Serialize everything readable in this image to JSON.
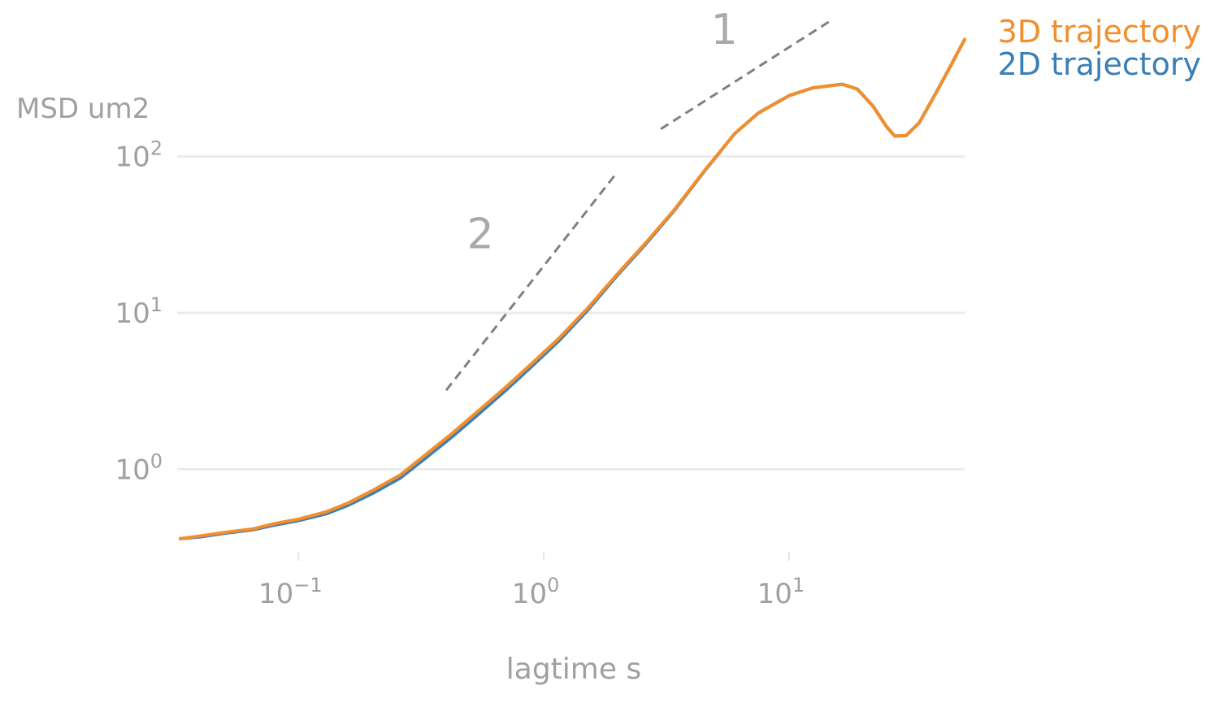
{
  "chart_data": {
    "type": "line",
    "title": "",
    "xlabel": "lagtime s",
    "ylabel": "MSD um2",
    "x_scale": "log",
    "y_scale": "log",
    "xlim": [
      0.032,
      52
    ],
    "ylim": [
      0.26,
      700
    ],
    "grid": "horizontal",
    "legend_position": "top-right",
    "x_ticks": [
      {
        "value": 0.1,
        "base": "10",
        "exp": "−1"
      },
      {
        "value": 1,
        "base": "10",
        "exp": "0"
      },
      {
        "value": 10,
        "base": "10",
        "exp": "1"
      }
    ],
    "y_ticks": [
      {
        "value": 1,
        "base": "10",
        "exp": "0"
      },
      {
        "value": 10,
        "base": "10",
        "exp": "1"
      },
      {
        "value": 100,
        "base": "10",
        "exp": "2"
      }
    ],
    "series": [
      {
        "name": "2D trajectory",
        "color": "#3a7fb6",
        "x": [
          0.033,
          0.04,
          0.05,
          0.065,
          0.08,
          0.1,
          0.13,
          0.16,
          0.2,
          0.26,
          0.33,
          0.42,
          0.55,
          0.7,
          0.9,
          1.15,
          1.5,
          2.0,
          2.6,
          3.4,
          4.5,
          6.0,
          7.5,
          10.0,
          12.5,
          16.5,
          19.0,
          22.0,
          25.0,
          27.0,
          30.0,
          34.0,
          40.0,
          46.0,
          52.0
        ],
        "y": [
          0.36,
          0.37,
          0.39,
          0.41,
          0.44,
          0.47,
          0.52,
          0.59,
          0.7,
          0.88,
          1.18,
          1.6,
          2.3,
          3.2,
          4.6,
          6.6,
          10.3,
          17.5,
          27.5,
          45.0,
          80.0,
          140.0,
          190.0,
          245.0,
          275.0,
          290.0,
          270.0,
          210.0,
          155.0,
          135.0,
          136.0,
          165.0,
          260.0,
          390.0,
          560.0
        ]
      },
      {
        "name": "3D trajectory",
        "color": "#f28e2b",
        "x": [
          0.033,
          0.04,
          0.05,
          0.065,
          0.08,
          0.1,
          0.13,
          0.16,
          0.2,
          0.26,
          0.33,
          0.42,
          0.55,
          0.7,
          0.9,
          1.15,
          1.5,
          2.0,
          2.6,
          3.4,
          4.5,
          6.0,
          7.5,
          10.0,
          12.5,
          16.5,
          19.0,
          22.0,
          25.0,
          27.0,
          30.0,
          34.0,
          40.0,
          46.0,
          52.0
        ],
        "y": [
          0.36,
          0.375,
          0.395,
          0.415,
          0.45,
          0.48,
          0.535,
          0.61,
          0.73,
          0.92,
          1.24,
          1.68,
          2.42,
          3.35,
          4.8,
          6.85,
          10.6,
          17.8,
          28.0,
          45.5,
          80.5,
          140.0,
          190.0,
          245.0,
          275.0,
          290.0,
          270.0,
          210.0,
          155.0,
          135.0,
          136.0,
          165.0,
          260.0,
          390.0,
          560.0
        ]
      }
    ],
    "slope_guides": [
      {
        "label": "2",
        "x": [
          0.4,
          2.0
        ],
        "y": [
          3.2,
          80.0
        ]
      },
      {
        "label": "1",
        "x": [
          3.0,
          15.0
        ],
        "y": [
          150.0,
          750.0
        ]
      }
    ]
  }
}
